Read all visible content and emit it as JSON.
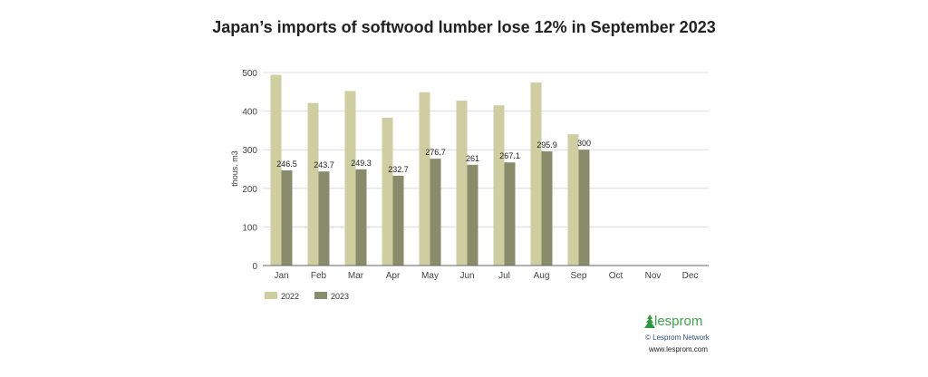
{
  "chart_data": {
    "type": "bar",
    "title": "Japan’s imports of softwood lumber lose 12% in September 2023",
    "xlabel": "",
    "ylabel": "thous. m3",
    "ylim": [
      0,
      500
    ],
    "yticks": [
      0,
      100,
      200,
      300,
      400,
      500
    ],
    "grid": true,
    "legend_position": "bottom-left",
    "categories": [
      "Jan",
      "Feb",
      "Mar",
      "Apr",
      "May",
      "Jun",
      "Jul",
      "Aug",
      "Sep",
      "Oct",
      "Nov",
      "Dec"
    ],
    "series": [
      {
        "name": "2022",
        "color": "#cfcea0",
        "values": [
          494,
          421,
          452,
          383,
          449,
          427,
          415,
          474,
          340,
          null,
          null,
          null
        ],
        "labels": false
      },
      {
        "name": "2023",
        "color": "#898c6a",
        "values": [
          246.5,
          243.7,
          249.3,
          232.7,
          276.7,
          261,
          267.1,
          295.9,
          300,
          null,
          null,
          null
        ],
        "labels": true
      }
    ]
  },
  "branding": {
    "logo_text": "lesprom",
    "network": "© Lesprom Network",
    "url": "www.lesprom.com"
  }
}
